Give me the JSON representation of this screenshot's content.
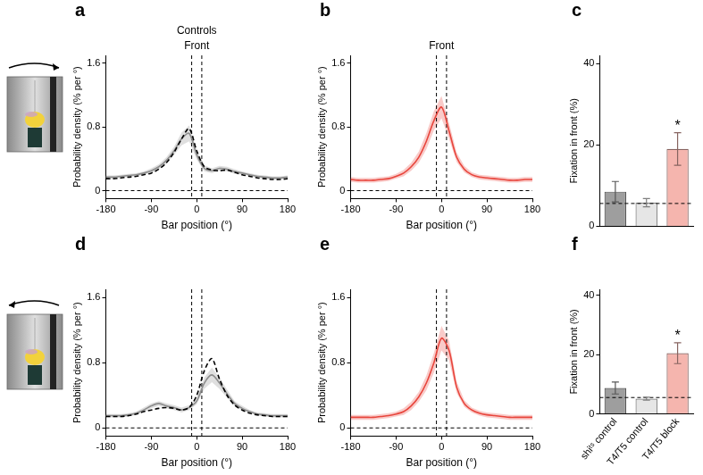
{
  "chart_data": [
    {
      "type": "line",
      "panel": "a",
      "title": "Controls",
      "annotations": [
        {
          "text": "Front",
          "x": 0
        }
      ],
      "x_label": "Bar position (°)",
      "y_label": "Probability density (% per °)",
      "x": [
        -180,
        -165,
        -150,
        -135,
        -120,
        -105,
        -90,
        -75,
        -60,
        -45,
        -30,
        -15,
        0,
        15,
        30,
        45,
        60,
        75,
        90,
        105,
        120,
        135,
        150,
        165,
        180
      ],
      "series": [
        {
          "color": "#8c8c8c",
          "line_style": "solid",
          "values": [
            0.17,
            0.17,
            0.18,
            0.19,
            0.2,
            0.22,
            0.25,
            0.3,
            0.38,
            0.5,
            0.65,
            0.72,
            0.45,
            0.28,
            0.25,
            0.28,
            0.27,
            0.24,
            0.22,
            0.2,
            0.18,
            0.17,
            0.16,
            0.16,
            0.17
          ],
          "errors": [
            0.02,
            0.02,
            0.02,
            0.02,
            0.02,
            0.02,
            0.03,
            0.03,
            0.04,
            0.05,
            0.08,
            0.1,
            0.06,
            0.04,
            0.03,
            0.03,
            0.03,
            0.03,
            0.02,
            0.02,
            0.02,
            0.02,
            0.02,
            0.02,
            0.02
          ]
        },
        {
          "color": "#000000",
          "line_style": "dashed",
          "values": [
            0.15,
            0.15,
            0.16,
            0.17,
            0.18,
            0.2,
            0.22,
            0.27,
            0.35,
            0.48,
            0.65,
            0.78,
            0.5,
            0.3,
            0.26,
            0.25,
            0.26,
            0.23,
            0.2,
            0.18,
            0.16,
            0.15,
            0.14,
            0.14,
            0.15
          ]
        }
      ],
      "vlines": [
        -10,
        10
      ],
      "hline": 0,
      "xlim": [
        -180,
        180
      ],
      "xticks": [
        -180,
        -90,
        0,
        90,
        180
      ],
      "ylim": [
        -0.1,
        1.7
      ],
      "yticks": [
        0,
        0.8,
        1.6
      ]
    },
    {
      "type": "line",
      "panel": "b",
      "annotations": [
        {
          "text": "Front",
          "x": 0
        }
      ],
      "x_label": "Bar position (°)",
      "y_label": "Probability density (% per °)",
      "x": [
        -180,
        -165,
        -150,
        -135,
        -120,
        -105,
        -90,
        -75,
        -60,
        -45,
        -30,
        -15,
        0,
        15,
        30,
        45,
        60,
        75,
        90,
        105,
        120,
        135,
        150,
        165,
        180
      ],
      "series": [
        {
          "color": "#e8453c",
          "line_style": "solid",
          "values": [
            0.14,
            0.13,
            0.13,
            0.13,
            0.14,
            0.15,
            0.18,
            0.22,
            0.3,
            0.42,
            0.62,
            0.88,
            1.05,
            0.75,
            0.42,
            0.27,
            0.2,
            0.17,
            0.16,
            0.15,
            0.14,
            0.13,
            0.13,
            0.14,
            0.14
          ],
          "errors": [
            0.03,
            0.03,
            0.03,
            0.03,
            0.03,
            0.03,
            0.03,
            0.04,
            0.05,
            0.07,
            0.1,
            0.12,
            0.14,
            0.1,
            0.06,
            0.04,
            0.03,
            0.03,
            0.03,
            0.03,
            0.03,
            0.03,
            0.03,
            0.03,
            0.03
          ]
        }
      ],
      "vlines": [
        -10,
        10
      ],
      "hline": 0,
      "xlim": [
        -180,
        180
      ],
      "xticks": [
        -180,
        -90,
        0,
        90,
        180
      ],
      "ylim": [
        -0.1,
        1.7
      ],
      "yticks": [
        0,
        0.8,
        1.6
      ]
    },
    {
      "type": "bar",
      "panel": "c",
      "y_label": "Fixation in front (%)",
      "categories": [
        null,
        null,
        null
      ],
      "values": [
        8.5,
        5.8,
        19
      ],
      "errors": [
        2.5,
        1,
        4
      ],
      "colors": [
        "#9e9e9e",
        "#e6e6e6",
        "#f5b5ae"
      ],
      "hline": 5.6,
      "annotations": [
        {
          "text": "*",
          "index": 2
        }
      ],
      "ylim": [
        0,
        42
      ],
      "yticks": [
        0,
        20,
        40
      ]
    },
    {
      "type": "line",
      "panel": "d",
      "x_label": "Bar position (°)",
      "y_label": "Probability density (% per °)",
      "x": [
        -180,
        -165,
        -150,
        -135,
        -120,
        -105,
        -90,
        -75,
        -60,
        -45,
        -30,
        -15,
        0,
        15,
        30,
        45,
        60,
        75,
        90,
        105,
        120,
        135,
        150,
        165,
        180
      ],
      "series": [
        {
          "color": "#8c8c8c",
          "line_style": "solid",
          "values": [
            0.15,
            0.15,
            0.15,
            0.16,
            0.18,
            0.22,
            0.27,
            0.3,
            0.27,
            0.25,
            0.22,
            0.25,
            0.33,
            0.55,
            0.65,
            0.55,
            0.42,
            0.3,
            0.24,
            0.2,
            0.17,
            0.16,
            0.15,
            0.15,
            0.15
          ],
          "errors": [
            0.02,
            0.02,
            0.02,
            0.02,
            0.02,
            0.03,
            0.03,
            0.03,
            0.03,
            0.03,
            0.03,
            0.03,
            0.04,
            0.07,
            0.09,
            0.07,
            0.05,
            0.03,
            0.03,
            0.02,
            0.02,
            0.02,
            0.02,
            0.02,
            0.02
          ]
        },
        {
          "color": "#000000",
          "line_style": "dashed",
          "values": [
            0.14,
            0.14,
            0.14,
            0.15,
            0.17,
            0.2,
            0.22,
            0.24,
            0.25,
            0.24,
            0.22,
            0.25,
            0.4,
            0.7,
            0.85,
            0.6,
            0.4,
            0.28,
            0.22,
            0.18,
            0.16,
            0.15,
            0.14,
            0.14,
            0.14
          ]
        }
      ],
      "vlines": [
        -10,
        10
      ],
      "hline": 0,
      "xlim": [
        -180,
        180
      ],
      "xticks": [
        -180,
        -90,
        0,
        90,
        180
      ],
      "ylim": [
        -0.1,
        1.7
      ],
      "yticks": [
        0,
        0.8,
        1.6
      ]
    },
    {
      "type": "line",
      "panel": "e",
      "x_label": "Bar position (°)",
      "y_label": "Probability density (% per °)",
      "x": [
        -180,
        -165,
        -150,
        -135,
        -120,
        -105,
        -90,
        -75,
        -60,
        -45,
        -30,
        -15,
        0,
        15,
        30,
        45,
        60,
        75,
        90,
        105,
        120,
        135,
        150,
        165,
        180
      ],
      "series": [
        {
          "color": "#e8453c",
          "line_style": "solid",
          "values": [
            0.13,
            0.13,
            0.13,
            0.13,
            0.14,
            0.15,
            0.17,
            0.2,
            0.27,
            0.38,
            0.55,
            0.8,
            1.1,
            0.95,
            0.5,
            0.3,
            0.22,
            0.18,
            0.16,
            0.15,
            0.14,
            0.13,
            0.13,
            0.13,
            0.13
          ],
          "errors": [
            0.03,
            0.03,
            0.03,
            0.03,
            0.03,
            0.03,
            0.03,
            0.04,
            0.05,
            0.06,
            0.09,
            0.12,
            0.15,
            0.12,
            0.07,
            0.04,
            0.03,
            0.03,
            0.03,
            0.03,
            0.03,
            0.03,
            0.03,
            0.03,
            0.03
          ]
        }
      ],
      "vlines": [
        -10,
        10
      ],
      "hline": 0,
      "xlim": [
        -180,
        180
      ],
      "xticks": [
        -180,
        -90,
        0,
        90,
        180
      ],
      "ylim": [
        -0.1,
        1.7
      ],
      "yticks": [
        0,
        0.8,
        1.6
      ]
    },
    {
      "type": "bar",
      "panel": "f",
      "y_label": "Fixation in front (%)",
      "categories": [
        "shiᵗˢ control",
        "T4/T5 control",
        "T4/T5 block"
      ],
      "values": [
        8.8,
        5.2,
        20.5
      ],
      "errors": [
        2,
        0.5,
        3.5
      ],
      "colors": [
        "#9e9e9e",
        "#e6e6e6",
        "#f5b5ae"
      ],
      "hline": 5.6,
      "annotations": [
        {
          "text": "*",
          "index": 2
        }
      ],
      "ylim": [
        0,
        42
      ],
      "yticks": [
        0,
        20,
        40
      ]
    }
  ]
}
